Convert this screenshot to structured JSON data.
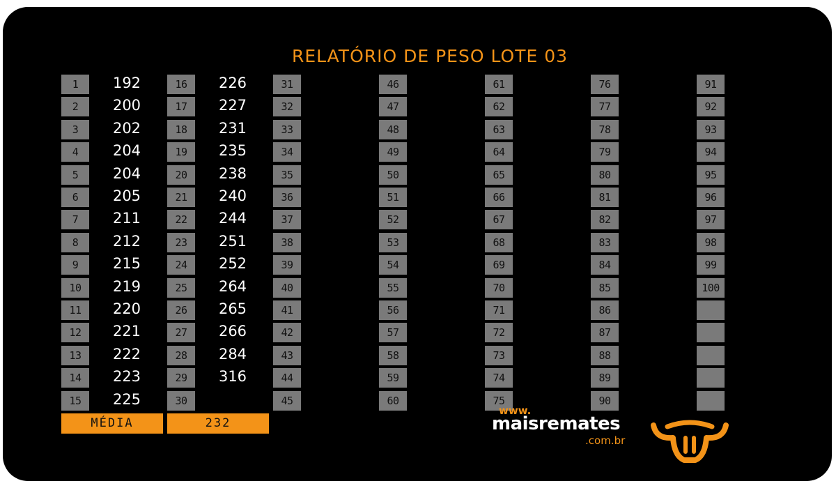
{
  "title": "RELATÓRIO DE PESO LOTE 03",
  "weights": [
    192,
    200,
    202,
    204,
    204,
    205,
    211,
    212,
    215,
    219,
    220,
    221,
    222,
    223,
    225,
    226,
    227,
    231,
    235,
    238,
    240,
    244,
    251,
    252,
    264,
    265,
    266,
    284,
    316
  ],
  "average_label": "MÉDIA",
  "average_value": "232",
  "logo": {
    "www": "www.",
    "name": "maisremates",
    "domain": ".com.br"
  },
  "colors": {
    "accent": "#f39318",
    "box": "#7a7a7a",
    "background": "#000000"
  },
  "icons": {
    "logo_mark": "bull-head-icon"
  }
}
